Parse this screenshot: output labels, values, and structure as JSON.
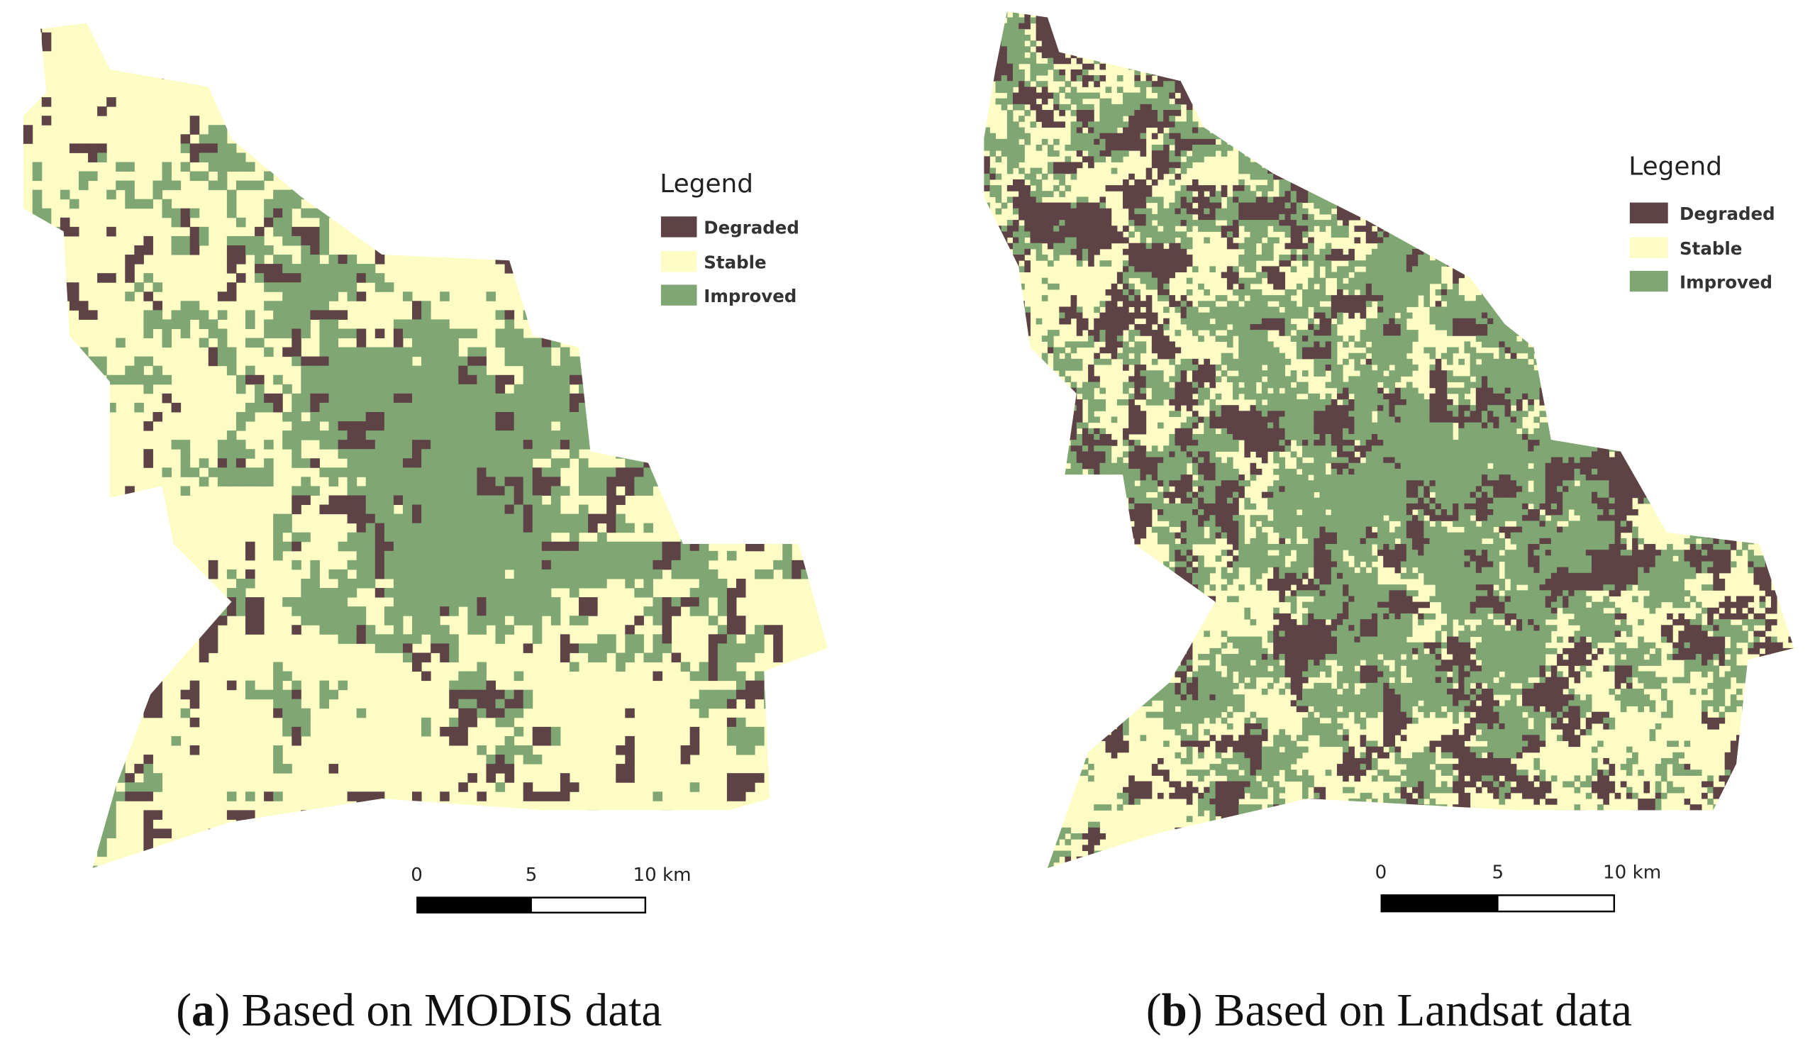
{
  "panels": [
    {
      "legend": {
        "title": "Legend",
        "items": [
          {
            "label": "Degraded",
            "color": "#5e4346"
          },
          {
            "label": "Stable",
            "color": "#fdfcc4"
          },
          {
            "label": "Improved",
            "color": "#7fa673"
          }
        ]
      },
      "scale_labels": [
        "0",
        "5",
        "10 km"
      ],
      "caption": [
        "(",
        "a",
        ") Based on MODIS data"
      ]
    },
    {
      "legend": {
        "title": "Legend",
        "items": [
          {
            "label": "Degraded",
            "color": "#5e4346"
          },
          {
            "label": "Stable",
            "color": "#fdfcc4"
          },
          {
            "label": "Improved",
            "color": "#7fa673"
          }
        ]
      },
      "scale_labels": [
        "0",
        "5",
        "10 km"
      ],
      "caption": [
        "(",
        "b",
        ") Based on Landsat data"
      ]
    }
  ]
}
